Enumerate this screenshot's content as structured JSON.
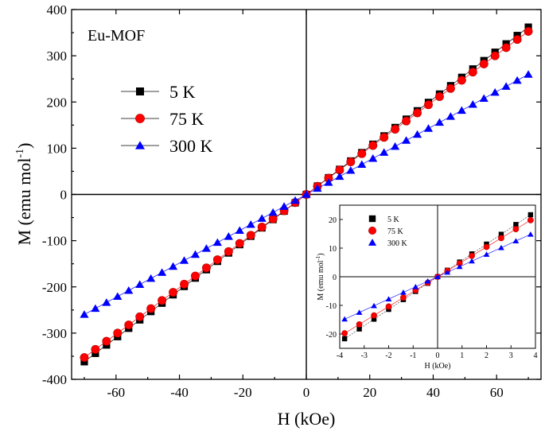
{
  "chart_data": [
    {
      "type": "scatter",
      "title": "Eu-MOF",
      "xlabel": "H (kOe)",
      "ylabel_main": "M (emu mol",
      "ylabel_sup": "-1",
      "ylabel_close": ")",
      "xlim": [
        -74,
        74
      ],
      "ylim": [
        -400,
        400
      ],
      "xticks": [
        -60,
        -40,
        -20,
        0,
        20,
        40,
        60
      ],
      "yticks": [
        -400,
        -300,
        -200,
        -100,
        0,
        100,
        200,
        300,
        400
      ],
      "xtick_labels": [
        "-60",
        "-40",
        "-20",
        "0",
        "20",
        "40",
        "60"
      ],
      "ytick_labels": [
        "-400",
        "-300",
        "-200",
        "-100",
        "0",
        "100",
        "200",
        "300",
        "400"
      ],
      "legend_position": "top-left",
      "series": [
        {
          "name": "5 K",
          "marker": "square",
          "color": "#000000",
          "x_range": [
            -70,
            70
          ],
          "step": 3.5,
          "slope": 5.17,
          "values_at_ends": [
            -362,
            362
          ]
        },
        {
          "name": "75 K",
          "marker": "circle",
          "color": "#ff0000",
          "x_range": [
            -70,
            70
          ],
          "step": 3.5,
          "slope": 5.04,
          "values_at_ends": [
            -353,
            353
          ]
        },
        {
          "name": "300 K",
          "marker": "triangle",
          "color": "#0000ff",
          "x_range": [
            -70,
            70
          ],
          "step": 3.5,
          "slope": 3.71,
          "values_at_ends": [
            -260,
            260
          ]
        }
      ]
    },
    {
      "type": "scatter",
      "title": "",
      "xlabel": "H (kOe)",
      "ylabel_main": "M (emu mol",
      "ylabel_sup": "-1",
      "ylabel_close": ")",
      "xlim": [
        -4,
        4
      ],
      "ylim": [
        -25,
        25
      ],
      "xticks": [
        -4,
        -3,
        -2,
        -1,
        0,
        1,
        2,
        3,
        4
      ],
      "yticks": [
        -20,
        -10,
        0,
        10,
        20
      ],
      "xtick_labels": [
        "-4",
        "-3",
        "-2",
        "-1",
        "0",
        "1",
        "2",
        "3",
        "4"
      ],
      "ytick_labels": [
        "-20",
        "-10",
        "0",
        "10",
        "20"
      ],
      "legend_position": "top-left",
      "series": [
        {
          "name": "5 K",
          "marker": "square",
          "color": "#000000",
          "x_values": [
            -3.8,
            -3.2,
            -2.6,
            -2.0,
            -1.4,
            -0.9,
            -0.4,
            0,
            0.4,
            0.9,
            1.4,
            2.0,
            2.6,
            3.2,
            3.8
          ],
          "slope": 5.7
        },
        {
          "name": "75 K",
          "marker": "circle",
          "color": "#ff0000",
          "x_values": [
            -3.8,
            -3.2,
            -2.6,
            -2.0,
            -1.4,
            -0.9,
            -0.4,
            0,
            0.4,
            0.9,
            1.4,
            2.0,
            2.6,
            3.2,
            3.8
          ],
          "slope": 5.2
        },
        {
          "name": "300 K",
          "marker": "triangle",
          "color": "#0000ff",
          "x_values": [
            -3.8,
            -3.2,
            -2.6,
            -2.0,
            -1.4,
            -0.9,
            -0.4,
            0,
            0.4,
            0.9,
            1.4,
            2.0,
            2.6,
            3.2,
            3.8
          ],
          "slope": 3.9
        }
      ]
    }
  ]
}
